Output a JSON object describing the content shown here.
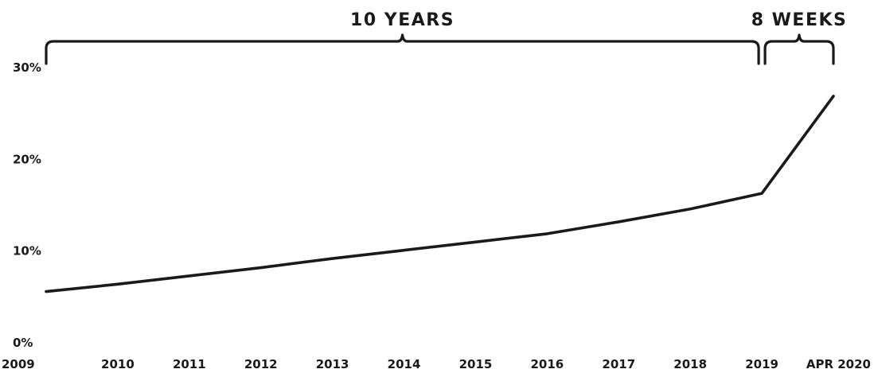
{
  "chart_data": {
    "type": "line",
    "title": "",
    "xlabel": "",
    "ylabel": "",
    "x": [
      "2009",
      "2010",
      "2011",
      "2012",
      "2013",
      "2014",
      "2015",
      "2016",
      "2017",
      "2018",
      "2019",
      "APR 2020"
    ],
    "y_ticks": [
      "0%",
      "10%",
      "20%",
      "30%"
    ],
    "ylim": [
      0,
      30
    ],
    "grid": false,
    "series": [
      {
        "values": [
          5.5,
          6.3,
          7.2,
          8.1,
          9.1,
          10.0,
          10.9,
          11.8,
          13.1,
          14.5,
          16.2,
          26.8
        ]
      }
    ],
    "annotations": [
      {
        "text": "10 YEARS",
        "from": "2009",
        "to": "2019"
      },
      {
        "text": "8 WEEKS",
        "from": "2019",
        "to": "APR 2020"
      }
    ]
  }
}
